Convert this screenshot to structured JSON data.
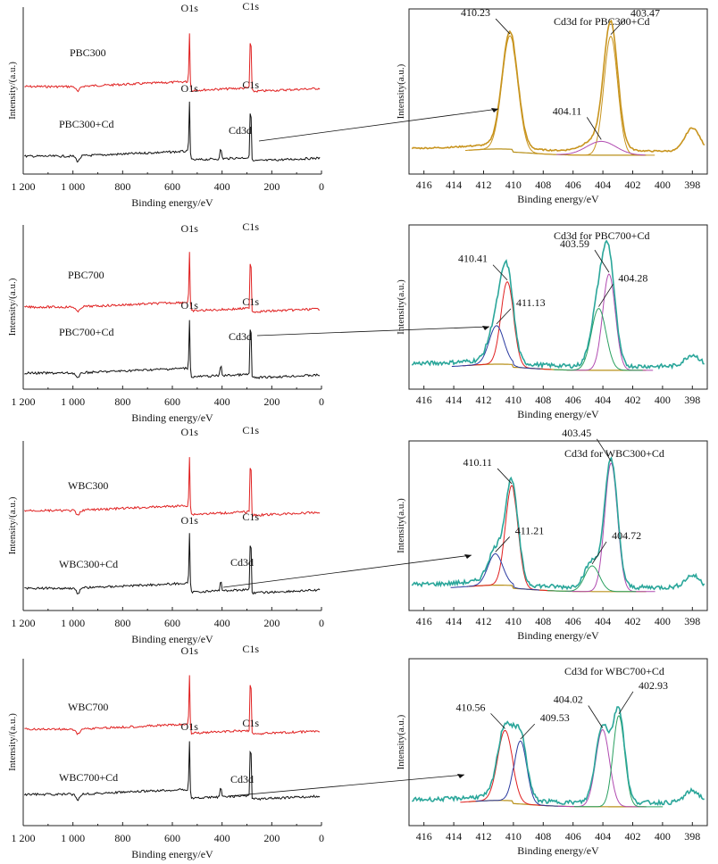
{
  "figure": {
    "survey_xlabel": "Binding energy/eV",
    "survey_ylabel": "Intensity/(a.u.)",
    "cd_xlabel": "Binding energy/eV",
    "cd_ylabel": "Intensity(a.u.)",
    "survey_ticks": [
      "1 200",
      "1 000",
      "800",
      "600",
      "400",
      "200",
      "0"
    ],
    "cd_ticks": [
      "416",
      "414",
      "412",
      "410",
      "408",
      "406",
      "404",
      "402",
      "400",
      "398"
    ],
    "line_colors": {
      "pristine": "#e02020",
      "cd_loaded": "#111111",
      "envelope_1": "#c8941e",
      "envelope_other": "#2aa69a",
      "fit_high": "#e02020",
      "fit_low": "#2a3aa0",
      "fit_mid": "#b04ab0",
      "fit_green": "#2aa060",
      "baseline": "#b8901a"
    }
  },
  "chart_data": [
    {
      "type": "line",
      "panel": "survey",
      "sample": "PBC300",
      "series": [
        {
          "name": "PBC300",
          "color": "#e02020"
        },
        {
          "name": "PBC300+Cd",
          "color": "#111111"
        }
      ],
      "peak_labels": [
        "O1s",
        "C1s",
        "O1s",
        "Cd3d",
        "C1s"
      ],
      "peaks_eV": {
        "O1s": 531,
        "C1s": 285,
        "Cd3d": 405
      },
      "xlim": [
        1200,
        0
      ]
    },
    {
      "type": "line",
      "panel": "Cd3d",
      "title": "Cd3d for PBC300+Cd",
      "xlim": [
        417,
        397
      ],
      "annotations": [
        {
          "label": "410.23",
          "x": 410.23
        },
        {
          "label": "403.47",
          "x": 403.47
        },
        {
          "label": "404.11",
          "x": 404.11
        }
      ],
      "components": [
        {
          "center": 410.23,
          "height": 0.82,
          "width": 0.75
        },
        {
          "center": 403.47,
          "height": 0.86,
          "width": 0.65
        },
        {
          "center": 404.11,
          "height": 0.1,
          "width": 1.4
        }
      ]
    },
    {
      "type": "line",
      "panel": "survey",
      "sample": "PBC700",
      "series": [
        {
          "name": "PBC700",
          "color": "#e02020"
        },
        {
          "name": "PBC700+Cd",
          "color": "#111111"
        }
      ],
      "peak_labels": [
        "O1s",
        "C1s",
        "O1s",
        "Cd3d",
        "C1s"
      ],
      "peaks_eV": {
        "O1s": 531,
        "C1s": 285,
        "Cd3d": 405
      },
      "xlim": [
        1200,
        0
      ]
    },
    {
      "type": "line",
      "panel": "Cd3d",
      "title": "Cd3d for PBC700+Cd",
      "xlim": [
        417,
        397
      ],
      "annotations": [
        {
          "label": "410.41",
          "x": 410.41
        },
        {
          "label": "411.13",
          "x": 411.13
        },
        {
          "label": "403.59",
          "x": 403.59
        },
        {
          "label": "404.28",
          "x": 404.28
        }
      ],
      "components": [
        {
          "center": 410.41,
          "height": 0.6,
          "width": 0.6
        },
        {
          "center": 411.13,
          "height": 0.28,
          "width": 0.7
        },
        {
          "center": 403.59,
          "height": 0.7,
          "width": 0.6
        },
        {
          "center": 404.28,
          "height": 0.45,
          "width": 0.7
        }
      ]
    },
    {
      "type": "line",
      "panel": "survey",
      "sample": "WBC300",
      "series": [
        {
          "name": "WBC300",
          "color": "#e02020"
        },
        {
          "name": "WBC300+Cd",
          "color": "#111111"
        }
      ],
      "peak_labels": [
        "O1s",
        "C1s",
        "O1s",
        "Cd3d",
        "C1s"
      ],
      "peaks_eV": {
        "O1s": 531,
        "C1s": 285,
        "Cd3d": 405
      },
      "xlim": [
        1200,
        0
      ]
    },
    {
      "type": "line",
      "panel": "Cd3d",
      "title": "Cd3d for WBC300+Cd",
      "xlim": [
        417,
        397
      ],
      "annotations": [
        {
          "label": "410.11",
          "x": 410.11
        },
        {
          "label": "411.21",
          "x": 411.21
        },
        {
          "label": "403.45",
          "x": 403.45
        },
        {
          "label": "404.72",
          "x": 404.72
        }
      ],
      "components": [
        {
          "center": 410.11,
          "height": 0.7,
          "width": 0.6
        },
        {
          "center": 411.21,
          "height": 0.22,
          "width": 0.7
        },
        {
          "center": 403.45,
          "height": 0.9,
          "width": 0.6
        },
        {
          "center": 404.72,
          "height": 0.18,
          "width": 0.7
        }
      ]
    },
    {
      "type": "line",
      "panel": "survey",
      "sample": "WBC700",
      "series": [
        {
          "name": "WBC700",
          "color": "#e02020"
        },
        {
          "name": "WBC700+Cd",
          "color": "#111111"
        }
      ],
      "peak_labels": [
        "C1s",
        "O1s",
        "O1s",
        "Cd3d",
        "C1s"
      ],
      "peaks_eV": {
        "O1s": 531,
        "C1s": 285,
        "Cd3d": 405
      },
      "xlim": [
        1200,
        0
      ]
    },
    {
      "type": "line",
      "panel": "Cd3d",
      "title": "Cd3d for WBC700+Cd",
      "xlim": [
        417,
        397
      ],
      "annotations": [
        {
          "label": "410.56",
          "x": 410.56
        },
        {
          "label": "409.53",
          "x": 409.53
        },
        {
          "label": "404.02",
          "x": 404.02
        },
        {
          "label": "402.93",
          "x": 402.93
        }
      ],
      "components": [
        {
          "center": 410.56,
          "height": 0.5,
          "width": 0.7
        },
        {
          "center": 409.53,
          "height": 0.45,
          "width": 0.6
        },
        {
          "center": 404.02,
          "height": 0.55,
          "width": 0.65
        },
        {
          "center": 402.93,
          "height": 0.65,
          "width": 0.55
        }
      ]
    }
  ]
}
